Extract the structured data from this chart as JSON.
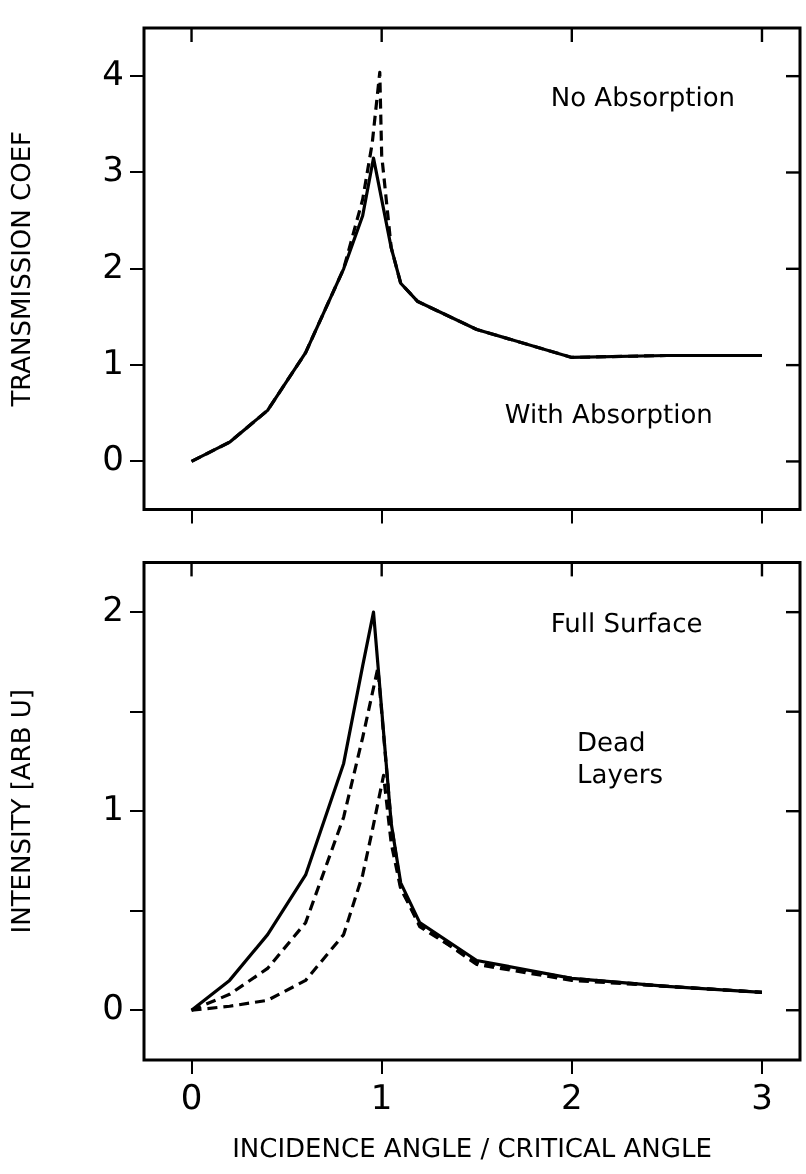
{
  "chart_data": [
    {
      "type": "line",
      "ylabel": "TRANSMISSION COEF",
      "xlim": [
        -0.25,
        3.2
      ],
      "xticks": [
        0,
        1,
        2,
        3
      ],
      "ylim": [
        -0.5,
        4.5
      ],
      "yticks": [
        0,
        1,
        2,
        3,
        4
      ],
      "tick_labels": "y",
      "grid": false,
      "legend": false,
      "marker": "none",
      "annotations": [
        "No Absorption",
        "With Absorption"
      ],
      "series": [
        {
          "color": "#000000",
          "line_style": "solid",
          "x": [
            0,
            0.2,
            0.4,
            0.6,
            0.8,
            0.9,
            0.957,
            1.05,
            1.1,
            1.19,
            1.5,
            2,
            2.5,
            3
          ],
          "values": [
            0,
            0.2,
            0.53,
            1.13,
            2.0,
            2.55,
            3.15,
            2.22,
            1.85,
            1.66,
            1.37,
            1.08,
            1.1,
            1.1
          ]
        },
        {
          "color": "#000000",
          "line_style": "dashed",
          "x": [
            0,
            0.2,
            0.4,
            0.6,
            0.8,
            0.9,
            0.95,
            0.99,
            1.0,
            1.05,
            1.1,
            1.19,
            1.5,
            2,
            2.5,
            3
          ],
          "values": [
            0,
            0.2,
            0.53,
            1.13,
            2.0,
            2.72,
            3.3,
            4.04,
            3.18,
            2.22,
            1.85,
            1.66,
            1.37,
            1.08,
            1.1,
            1.1
          ]
        }
      ]
    },
    {
      "type": "line",
      "xlabel": "INCIDENCE ANGLE / CRITICAL ANGLE",
      "ylabel": "INTENSITY [ARB U]",
      "xlim": [
        -0.25,
        3.2
      ],
      "xticks": [
        0,
        1,
        2,
        3
      ],
      "ylim": [
        -0.25,
        2.25
      ],
      "yticks": [
        0,
        {
          "value": 0.5,
          "label": null
        },
        1,
        {
          "value": 1.5,
          "label": null
        },
        2
      ],
      "grid": false,
      "legend": false,
      "marker": "none",
      "annotations": [
        "Full Surface",
        "Dead\nLayers"
      ],
      "series": [
        {
          "color": "#000000",
          "line_style": "solid",
          "x": [
            0,
            0.2,
            0.4,
            0.6,
            0.8,
            0.9,
            0.957,
            1.05,
            1.1,
            1.2,
            1.5,
            2,
            2.5,
            3
          ],
          "values": [
            0,
            0.15,
            0.38,
            0.68,
            1.24,
            1.73,
            2.0,
            0.94,
            0.64,
            0.44,
            0.25,
            0.16,
            0.12,
            0.09
          ]
        },
        {
          "color": "#000000",
          "line_style": "dashed",
          "x": [
            0,
            0.2,
            0.4,
            0.6,
            0.8,
            0.9,
            0.98,
            1.05,
            1.1,
            1.2,
            1.5,
            2,
            2.5,
            3
          ],
          "values": [
            0,
            0.08,
            0.21,
            0.44,
            0.97,
            1.37,
            1.72,
            0.94,
            0.62,
            0.42,
            0.24,
            0.16,
            0.12,
            0.09
          ]
        },
        {
          "color": "#000000",
          "line_style": "dashed",
          "x": [
            0,
            0.2,
            0.4,
            0.6,
            0.8,
            0.9,
            0.95,
            1.01,
            1.05,
            1.1,
            1.2,
            1.5,
            2,
            2.5,
            3
          ],
          "values": [
            0,
            0.02,
            0.05,
            0.15,
            0.38,
            0.68,
            0.9,
            1.18,
            0.84,
            0.61,
            0.43,
            0.23,
            0.15,
            0.12,
            0.09
          ]
        }
      ]
    }
  ]
}
